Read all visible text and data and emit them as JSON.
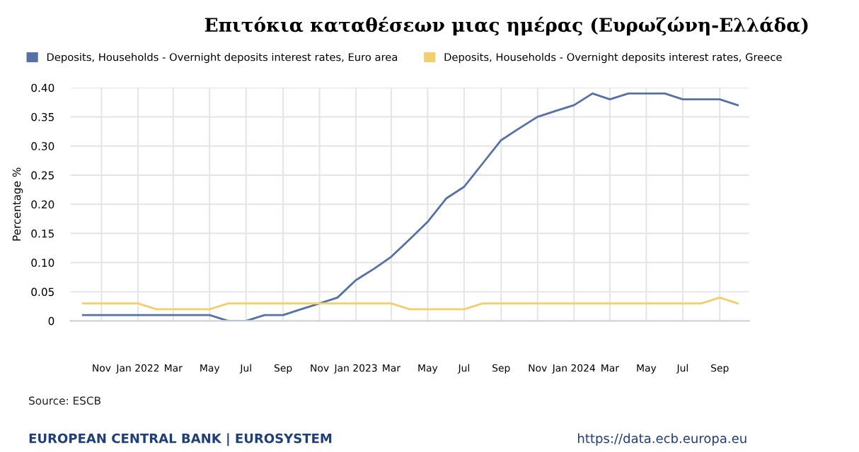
{
  "chart_data": {
    "type": "line",
    "title": "Επιτόκια καταθέσεων μιας ημέρας (Ευρωζώνη-Ελλάδα)",
    "ylabel": "Percentage %",
    "x": [
      "2021-10",
      "2021-11",
      "2021-12",
      "2022-01",
      "2022-02",
      "2022-03",
      "2022-04",
      "2022-05",
      "2022-06",
      "2022-07",
      "2022-08",
      "2022-09",
      "2022-10",
      "2022-11",
      "2022-12",
      "2023-01",
      "2023-02",
      "2023-03",
      "2023-04",
      "2023-05",
      "2023-06",
      "2023-07",
      "2023-08",
      "2023-09",
      "2023-10",
      "2023-11",
      "2023-12",
      "2024-01",
      "2024-02",
      "2024-03",
      "2024-04",
      "2024-05",
      "2024-06",
      "2024-07",
      "2024-08",
      "2024-09",
      "2024-10"
    ],
    "series": [
      {
        "name": "Deposits, Households - Overnight deposits interest rates, Euro area",
        "color": "#5670a8",
        "values": [
          0.01,
          0.01,
          0.01,
          0.01,
          0.01,
          0.01,
          0.01,
          0.01,
          0,
          0,
          0.01,
          0.01,
          0.02,
          0.03,
          0.04,
          0.07,
          0.09,
          0.11,
          0.14,
          0.17,
          0.21,
          0.23,
          0.27,
          0.31,
          0.33,
          0.35,
          0.36,
          0.37,
          0.39,
          0.38,
          0.39,
          0.39,
          0.39,
          0.38,
          0.38,
          0.38,
          0.37
        ]
      },
      {
        "name": "Deposits, Households - Overnight deposits interest rates, Greece",
        "color": "#f2cf6b",
        "values": [
          0.03,
          0.03,
          0.03,
          0.03,
          0.02,
          0.02,
          0.02,
          0.02,
          0.03,
          0.03,
          0.03,
          0.03,
          0.03,
          0.03,
          0.03,
          0.03,
          0.03,
          0.03,
          0.02,
          0.02,
          0.02,
          0.02,
          0.03,
          0.03,
          0.03,
          0.03,
          0.03,
          0.03,
          0.03,
          0.03,
          0.03,
          0.03,
          0.03,
          0.03,
          0.03,
          0.04,
          0.03
        ]
      }
    ],
    "xlim": [
      "2021-09-10",
      "2024-10-20"
    ],
    "xticks": [
      {
        "value": "2021-11",
        "label": "Nov"
      },
      {
        "value": "2022-01",
        "label": "Jan 2022"
      },
      {
        "value": "2022-03",
        "label": "Mar"
      },
      {
        "value": "2022-05",
        "label": "May"
      },
      {
        "value": "2022-07",
        "label": "Jul"
      },
      {
        "value": "2022-09",
        "label": "Sep"
      },
      {
        "value": "2022-11",
        "label": "Nov"
      },
      {
        "value": "2023-01",
        "label": "Jan 2023"
      },
      {
        "value": "2023-03",
        "label": "Mar"
      },
      {
        "value": "2023-05",
        "label": "May"
      },
      {
        "value": "2023-07",
        "label": "Jul"
      },
      {
        "value": "2023-09",
        "label": "Sep"
      },
      {
        "value": "2023-11",
        "label": "Nov"
      },
      {
        "value": "2024-01",
        "label": "Jan 2024"
      },
      {
        "value": "2024-03",
        "label": "Mar"
      },
      {
        "value": "2024-05",
        "label": "May"
      },
      {
        "value": "2024-07",
        "label": "Jul"
      },
      {
        "value": "2024-09",
        "label": "Sep"
      }
    ],
    "ylim": [
      0,
      0.4
    ],
    "yticks": [
      {
        "value": 0,
        "label": "0"
      },
      {
        "value": 0.05,
        "label": "0.05"
      },
      {
        "value": 0.1,
        "label": "0.10"
      },
      {
        "value": 0.15,
        "label": "0.15"
      },
      {
        "value": 0.2,
        "label": "0.20"
      },
      {
        "value": 0.25,
        "label": "0.25"
      },
      {
        "value": 0.3,
        "label": "0.30"
      },
      {
        "value": 0.35,
        "label": "0.35"
      },
      {
        "value": 0.4,
        "label": "0.40"
      }
    ],
    "grid": true,
    "legend": "top left",
    "marker": "none",
    "line_style": "solid",
    "annotations": [
      "Source: ESCB",
      "EUROPEAN CENTRAL BANK | EUROSYSTEM",
      "https://data.ecb.europa.eu"
    ]
  }
}
